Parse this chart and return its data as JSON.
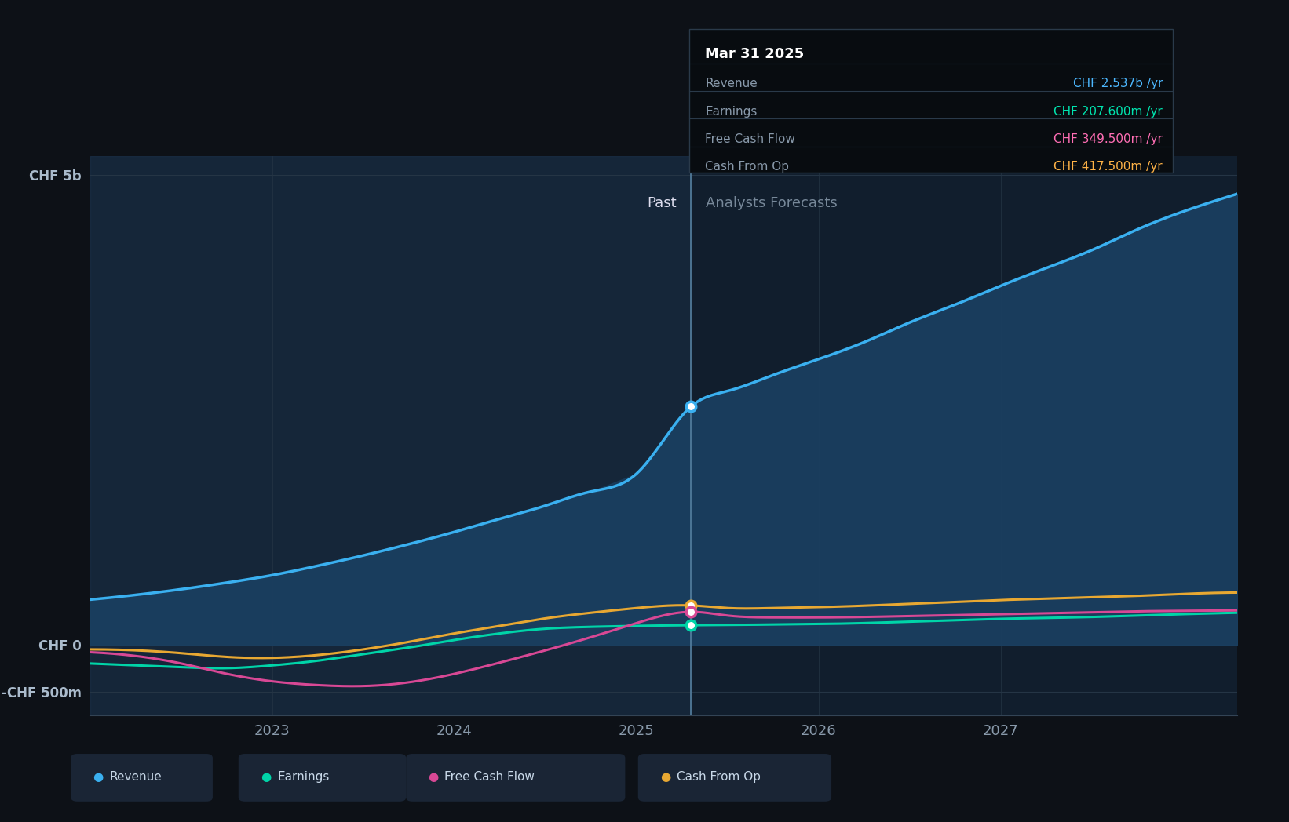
{
  "bg_color": "#0d1117",
  "plot_bg_color": "#111e2d",
  "grid_color": "#253545",
  "x_min": 2022.0,
  "x_max": 2028.3,
  "y_min": -750000000,
  "y_max": 5200000000,
  "ytick_labels": [
    "-CHF 500m",
    "CHF 0",
    "CHF 5b"
  ],
  "ytick_vals": [
    -500000000,
    0,
    5000000000
  ],
  "xtick_labels": [
    "2023",
    "2024",
    "2025",
    "2026",
    "2027"
  ],
  "xtick_vals": [
    2023,
    2024,
    2025,
    2026,
    2027
  ],
  "divider_x": 2025.3,
  "past_label": "Past",
  "forecast_label": "Analysts Forecasts",
  "tooltip_title": "Mar 31 2025",
  "tooltip_rows": [
    {
      "label": "Revenue",
      "value": "CHF 2.537b /yr",
      "color": "#4db8ff"
    },
    {
      "label": "Earnings",
      "value": "CHF 207.600m /yr",
      "color": "#00e5b0"
    },
    {
      "label": "Free Cash Flow",
      "value": "CHF 349.500m /yr",
      "color": "#ff6eb4"
    },
    {
      "label": "Cash From Op",
      "value": "CHF 417.500m /yr",
      "color": "#ffb347"
    }
  ],
  "revenue": {
    "color": "#3ab0f0",
    "fill_color": "#1a3f60",
    "x": [
      2022.0,
      2022.25,
      2022.5,
      2022.75,
      2023.0,
      2023.25,
      2023.5,
      2023.75,
      2024.0,
      2024.25,
      2024.5,
      2024.75,
      2025.0,
      2025.3,
      2025.5,
      2025.75,
      2026.0,
      2026.25,
      2026.5,
      2026.75,
      2027.0,
      2027.25,
      2027.5,
      2027.75,
      2028.0,
      2028.3
    ],
    "y": [
      480000000,
      530000000,
      590000000,
      660000000,
      740000000,
      840000000,
      950000000,
      1070000000,
      1200000000,
      1340000000,
      1480000000,
      1630000000,
      1820000000,
      2537000000,
      2700000000,
      2870000000,
      3040000000,
      3220000000,
      3430000000,
      3620000000,
      3820000000,
      4010000000,
      4200000000,
      4420000000,
      4610000000,
      4800000000
    ]
  },
  "earnings": {
    "color": "#00d4a8",
    "x": [
      2022.0,
      2022.25,
      2022.5,
      2022.75,
      2023.0,
      2023.25,
      2023.5,
      2023.75,
      2024.0,
      2024.25,
      2024.5,
      2024.75,
      2025.0,
      2025.3,
      2025.5,
      2025.75,
      2026.0,
      2026.25,
      2026.5,
      2026.75,
      2027.0,
      2027.25,
      2027.5,
      2027.75,
      2028.0,
      2028.3
    ],
    "y": [
      -200000000,
      -220000000,
      -240000000,
      -250000000,
      -220000000,
      -170000000,
      -100000000,
      -30000000,
      50000000,
      120000000,
      170000000,
      190000000,
      200000000,
      207600000,
      210000000,
      215000000,
      220000000,
      230000000,
      245000000,
      260000000,
      275000000,
      285000000,
      295000000,
      310000000,
      325000000,
      340000000
    ]
  },
  "free_cash_flow": {
    "color": "#d84895",
    "x": [
      2022.0,
      2022.25,
      2022.5,
      2022.75,
      2023.0,
      2023.25,
      2023.5,
      2023.75,
      2024.0,
      2024.25,
      2024.5,
      2024.75,
      2025.0,
      2025.3,
      2025.5,
      2025.75,
      2026.0,
      2026.25,
      2026.5,
      2026.75,
      2027.0,
      2027.25,
      2027.5,
      2027.75,
      2028.0,
      2028.3
    ],
    "y": [
      -80000000,
      -120000000,
      -200000000,
      -310000000,
      -390000000,
      -430000000,
      -440000000,
      -400000000,
      -310000000,
      -190000000,
      -60000000,
      80000000,
      230000000,
      349500000,
      310000000,
      290000000,
      290000000,
      295000000,
      305000000,
      315000000,
      325000000,
      335000000,
      345000000,
      355000000,
      360000000,
      365000000
    ]
  },
  "cash_from_op": {
    "color": "#e8a832",
    "x": [
      2022.0,
      2022.25,
      2022.5,
      2022.75,
      2023.0,
      2023.25,
      2023.5,
      2023.75,
      2024.0,
      2024.25,
      2024.5,
      2024.75,
      2025.0,
      2025.3,
      2025.5,
      2025.75,
      2026.0,
      2026.25,
      2026.5,
      2026.75,
      2027.0,
      2027.25,
      2027.5,
      2027.75,
      2028.0,
      2028.3
    ],
    "y": [
      -50000000,
      -60000000,
      -90000000,
      -130000000,
      -140000000,
      -110000000,
      -50000000,
      30000000,
      120000000,
      200000000,
      280000000,
      340000000,
      390000000,
      417500000,
      390000000,
      390000000,
      400000000,
      415000000,
      435000000,
      455000000,
      475000000,
      490000000,
      505000000,
      520000000,
      540000000,
      555000000
    ]
  },
  "legend_items": [
    {
      "label": "Revenue",
      "color": "#3ab0f0"
    },
    {
      "label": "Earnings",
      "color": "#00d4a8"
    },
    {
      "label": "Free Cash Flow",
      "color": "#d84895"
    },
    {
      "label": "Cash From Op",
      "color": "#e8a832"
    }
  ]
}
